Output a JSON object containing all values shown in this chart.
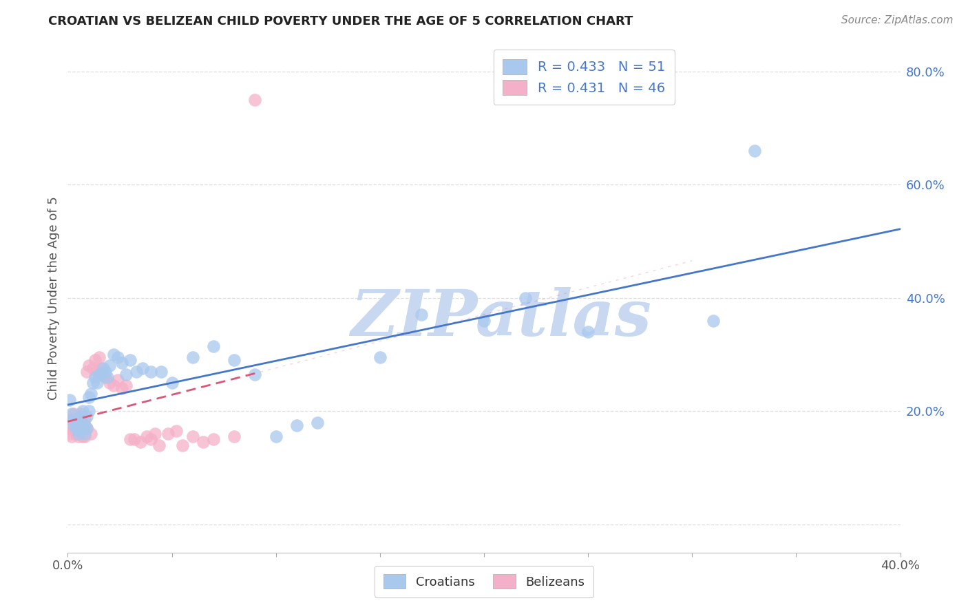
{
  "title": "CROATIAN VS BELIZEAN CHILD POVERTY UNDER THE AGE OF 5 CORRELATION CHART",
  "source": "Source: ZipAtlas.com",
  "ylabel": "Child Poverty Under the Age of 5",
  "xlim": [
    0.0,
    0.4
  ],
  "ylim": [
    -0.05,
    0.85
  ],
  "xticks": [
    0.0,
    0.05,
    0.1,
    0.15,
    0.2,
    0.25,
    0.3,
    0.35,
    0.4
  ],
  "yticks": [
    0.0,
    0.2,
    0.4,
    0.6,
    0.8
  ],
  "croatian_color": "#a8c8ee",
  "belizean_color": "#f4b0c8",
  "croatian_line_color": "#4477cc",
  "belizean_line_color": "#dd5577",
  "r_croatian": "0.433",
  "n_croatian": "51",
  "r_belizean": "0.431",
  "n_belizean": "46",
  "legend_label_croatian": "Croatians",
  "legend_label_belizean": "Belizeans",
  "watermark": "ZIPatlas",
  "watermark_color": "#c8d8f0",
  "legend_text_color": "#4477cc",
  "grid_color": "#dddddd",
  "title_color": "#222222",
  "source_color": "#888888",
  "ylabel_color": "#555555",
  "tick_color": "#555555",
  "croatian_x": [
    0.001,
    0.002,
    0.003,
    0.003,
    0.004,
    0.005,
    0.005,
    0.006,
    0.006,
    0.007,
    0.007,
    0.008,
    0.008,
    0.009,
    0.009,
    0.01,
    0.01,
    0.011,
    0.012,
    0.013,
    0.014,
    0.015,
    0.016,
    0.017,
    0.018,
    0.019,
    0.02,
    0.022,
    0.024,
    0.026,
    0.028,
    0.03,
    0.033,
    0.036,
    0.04,
    0.045,
    0.05,
    0.06,
    0.07,
    0.08,
    0.09,
    0.1,
    0.11,
    0.12,
    0.15,
    0.17,
    0.2,
    0.22,
    0.25,
    0.31,
    0.33
  ],
  "croatian_y": [
    0.22,
    0.195,
    0.185,
    0.175,
    0.17,
    0.185,
    0.16,
    0.19,
    0.165,
    0.2,
    0.175,
    0.175,
    0.16,
    0.19,
    0.17,
    0.2,
    0.225,
    0.23,
    0.25,
    0.26,
    0.25,
    0.265,
    0.265,
    0.275,
    0.27,
    0.26,
    0.28,
    0.3,
    0.295,
    0.285,
    0.265,
    0.29,
    0.27,
    0.275,
    0.27,
    0.27,
    0.25,
    0.295,
    0.315,
    0.29,
    0.265,
    0.155,
    0.175,
    0.18,
    0.295,
    0.37,
    0.36,
    0.4,
    0.34,
    0.36,
    0.66
  ],
  "belizean_x": [
    0.001,
    0.001,
    0.002,
    0.002,
    0.003,
    0.003,
    0.004,
    0.004,
    0.005,
    0.005,
    0.006,
    0.006,
    0.007,
    0.007,
    0.008,
    0.008,
    0.009,
    0.009,
    0.01,
    0.011,
    0.012,
    0.013,
    0.014,
    0.015,
    0.016,
    0.018,
    0.02,
    0.022,
    0.024,
    0.026,
    0.028,
    0.03,
    0.032,
    0.035,
    0.038,
    0.04,
    0.042,
    0.044,
    0.048,
    0.052,
    0.055,
    0.06,
    0.065,
    0.07,
    0.08,
    0.09
  ],
  "belizean_y": [
    0.175,
    0.16,
    0.155,
    0.185,
    0.165,
    0.195,
    0.18,
    0.16,
    0.165,
    0.155,
    0.195,
    0.17,
    0.18,
    0.155,
    0.185,
    0.155,
    0.17,
    0.27,
    0.28,
    0.16,
    0.275,
    0.29,
    0.27,
    0.295,
    0.275,
    0.26,
    0.25,
    0.245,
    0.255,
    0.24,
    0.245,
    0.15,
    0.15,
    0.145,
    0.155,
    0.15,
    0.16,
    0.14,
    0.16,
    0.165,
    0.14,
    0.155,
    0.145,
    0.15,
    0.155,
    0.75
  ]
}
